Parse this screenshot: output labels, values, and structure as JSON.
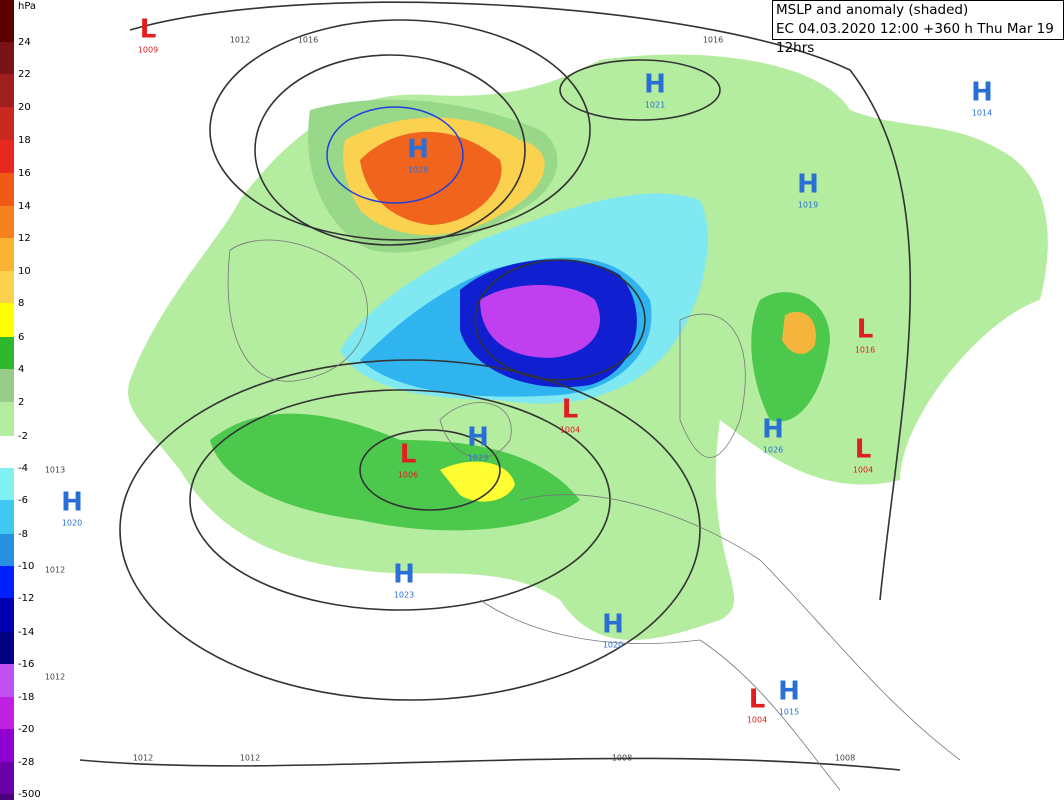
{
  "header": {
    "title": "MSLP and anomaly (shaded)",
    "subtitle": "EC 04.03.2020 12:00 +360 h Thu Mar 19 12hrs"
  },
  "colorbar": {
    "unit": "hPa",
    "labels": [
      "24",
      "22",
      "20",
      "18",
      "16",
      "14",
      "12",
      "10",
      "8",
      "6",
      "4",
      "2",
      "-2",
      "-4",
      "-6",
      "-8",
      "-10",
      "-12",
      "-14",
      "-16",
      "-18",
      "-20",
      "-28",
      "-500"
    ]
  },
  "centers": [
    {
      "type": "L",
      "value": "1009"
    },
    {
      "type": "H",
      "value": "1028"
    },
    {
      "type": "H",
      "value": "1021"
    },
    {
      "type": "H",
      "value": "1014"
    },
    {
      "type": "H",
      "value": "1019"
    },
    {
      "type": "L",
      "value": "1016"
    },
    {
      "type": "H",
      "value": "1026"
    },
    {
      "type": "L",
      "value": "1004"
    },
    {
      "type": "L",
      "value": "1004"
    },
    {
      "type": "L",
      "value": "1006"
    },
    {
      "type": "H",
      "value": "1023"
    },
    {
      "type": "H",
      "value": "1020"
    },
    {
      "type": "H",
      "value": "1023"
    },
    {
      "type": "H",
      "value": "1020"
    },
    {
      "type": "L",
      "value": "1004"
    },
    {
      "type": "H",
      "value": "1015"
    }
  ],
  "isobar_labels": [
    "1012",
    "1016",
    "1016",
    "1013",
    "1012",
    "1012",
    "1012",
    "1012",
    "1008",
    "1008"
  ]
}
